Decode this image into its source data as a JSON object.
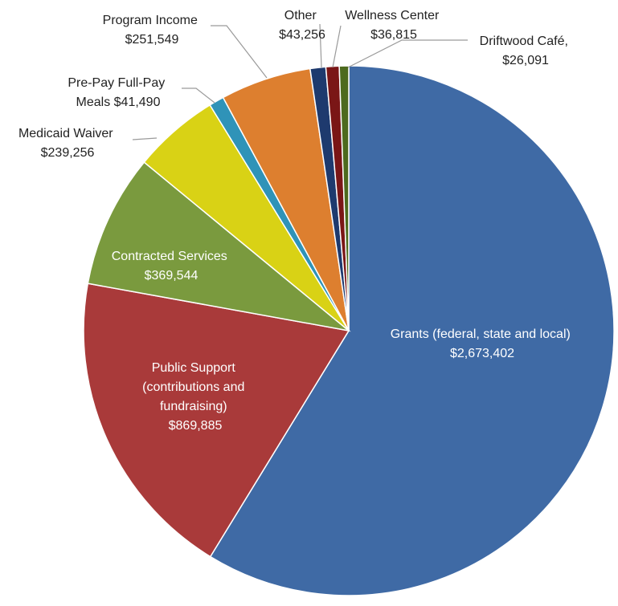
{
  "chart_data": {
    "type": "pie",
    "title": "",
    "slices": [
      {
        "name": "Grants (federal, state and local)",
        "value": 2673402,
        "value_label": "$2,673,402",
        "color": "#3f6aa5"
      },
      {
        "name": "Public Support (contributions and fundraising)",
        "value": 869885,
        "value_label": "$869,885",
        "color": "#a93a3a"
      },
      {
        "name": "Contracted Services",
        "value": 369544,
        "value_label": "$369,544",
        "color": "#7a9a3e"
      },
      {
        "name": "Medicaid Waiver",
        "value": 239256,
        "value_label": "$239,256",
        "color": "#d9d215"
      },
      {
        "name": "Pre-Pay Full-Pay Meals",
        "value": 41490,
        "value_label": "$41,490",
        "color": "#2f93b8"
      },
      {
        "name": "Program Income",
        "value": 251549,
        "value_label": "$251,549",
        "color": "#dd7f2f"
      },
      {
        "name": "Other",
        "value": 43256,
        "value_label": "$43,256",
        "color": "#1e3a6e"
      },
      {
        "name": "Wellness Center",
        "value": 36815,
        "value_label": "$36,815",
        "color": "#7a1616"
      },
      {
        "name": "Driftwood Café",
        "value": 26091,
        "value_label": "$26,091",
        "color": "#4d6a1e"
      }
    ]
  },
  "labels": {
    "grants": {
      "line1": "Grants (federal, state and local)",
      "line2": "$2,673,402"
    },
    "public_support": {
      "line1": "Public Support",
      "line2": "(contributions and",
      "line3": "fundraising)",
      "line4": "$869,885"
    },
    "contracted": {
      "line1": "Contracted Services",
      "line2": "$369,544"
    },
    "medicaid": {
      "line1": "Medicaid Waiver",
      "line2": "$239,256"
    },
    "prepay": {
      "line1": "Pre-Pay Full-Pay",
      "line2": "Meals  $41,490"
    },
    "program_income": {
      "line1": "Program Income",
      "line2": "$251,549"
    },
    "other": {
      "line1": "Other",
      "line2": "$43,256"
    },
    "wellness": {
      "line1": "Wellness Center",
      "line2": "$36,815"
    },
    "driftwood": {
      "line1": "Driftwood Café,",
      "line2": "$26,091"
    }
  }
}
